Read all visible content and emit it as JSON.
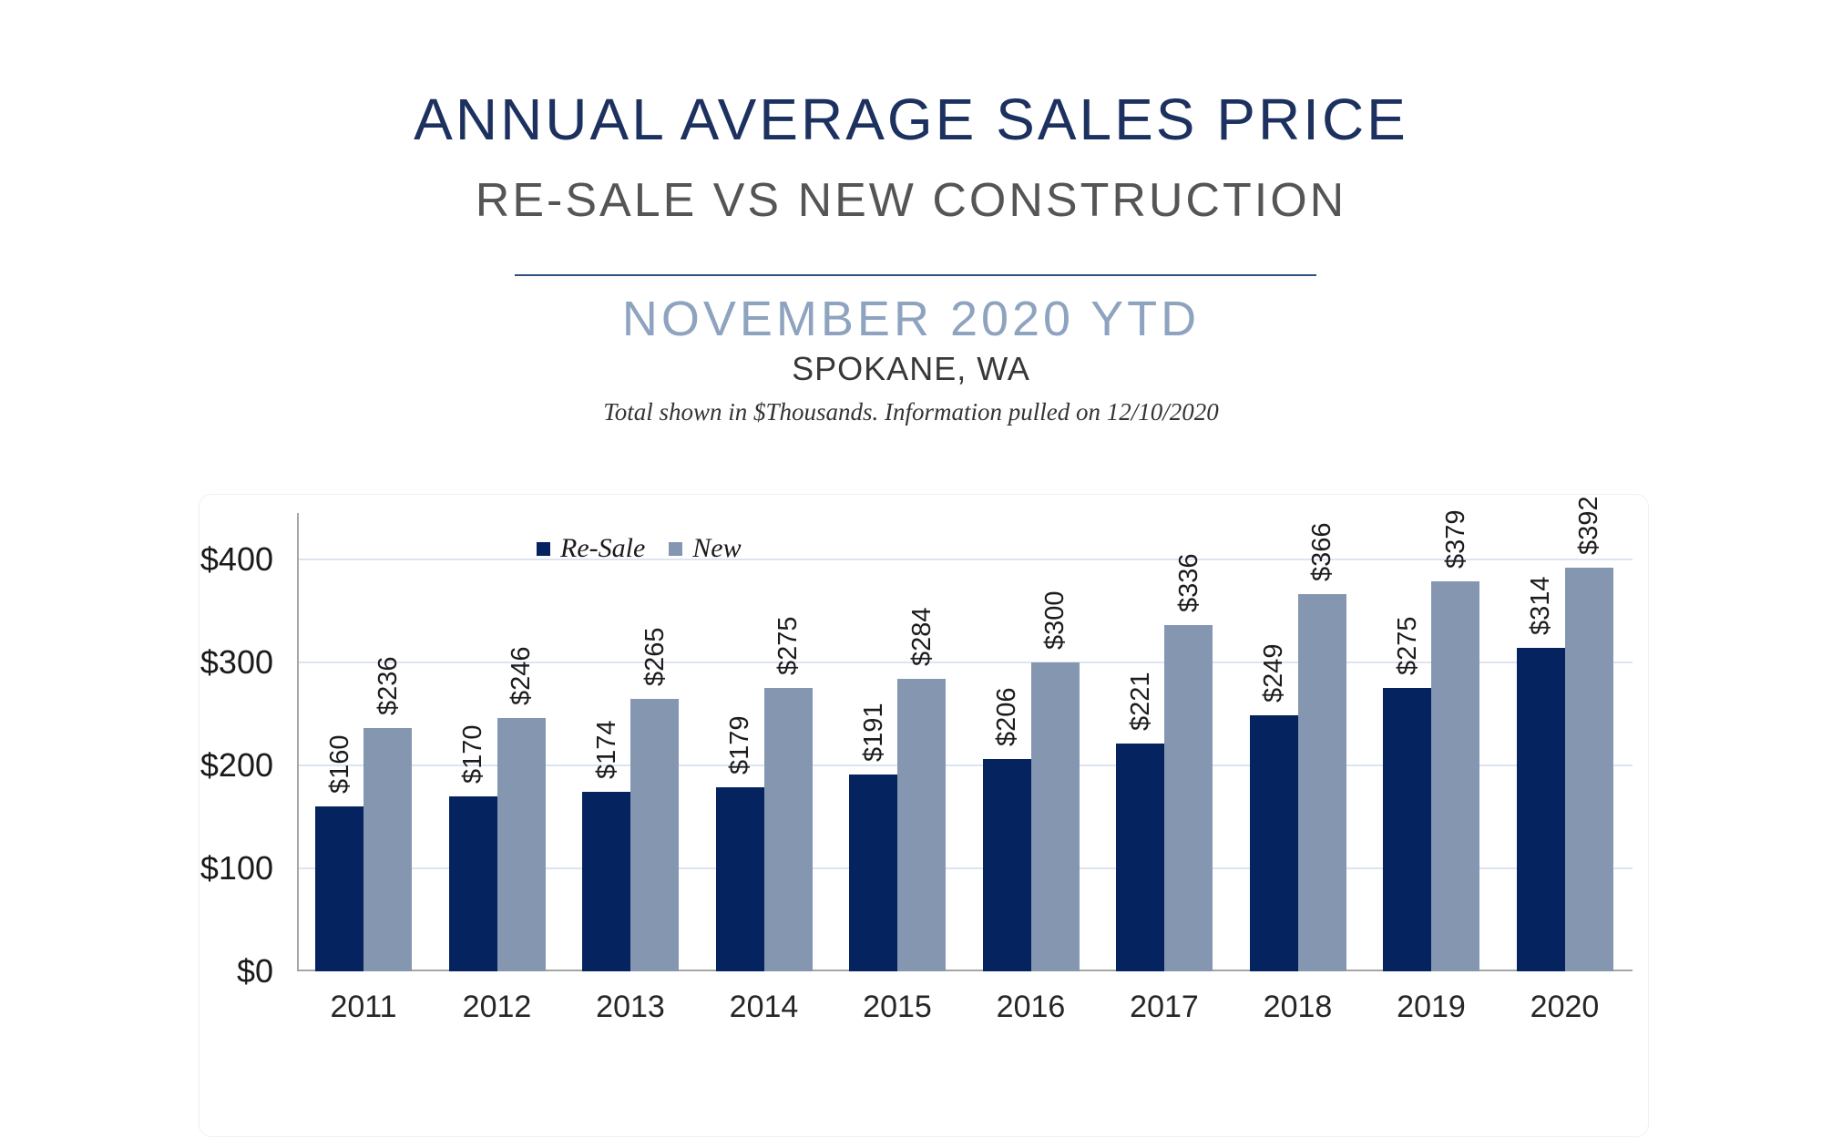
{
  "header": {
    "title": "ANNUAL AVERAGE SALES PRICE",
    "subtitle": "RE-SALE VS NEW CONSTRUCTION",
    "period": "NOVEMBER 2020 YTD",
    "location": "SPOKANE, WA",
    "footnote": "Total shown in $Thousands. Information pulled on 12/10/2020"
  },
  "colors": {
    "title": "#1d3160",
    "subtitle": "#555555",
    "divider": "#2f5182",
    "period": "#8ea3bf",
    "location": "#383838",
    "footnote": "#333333",
    "resale_bar": "#05235f",
    "new_bar": "#8496b0",
    "gridline": "#dce4f4",
    "axis": "#a6a6a6"
  },
  "chart_data": {
    "type": "bar",
    "title": "Annual Average Sales Price — Re-Sale vs New Construction, November 2020 YTD, Spokane WA",
    "units": "$Thousands",
    "value_prefix": "$",
    "categories": [
      "2011",
      "2012",
      "2013",
      "2014",
      "2015",
      "2016",
      "2017",
      "2018",
      "2019",
      "2020"
    ],
    "series": [
      {
        "name": "Re-Sale",
        "color": "#05235f",
        "values": [
          160,
          170,
          174,
          179,
          191,
          206,
          221,
          249,
          275,
          314
        ]
      },
      {
        "name": "New",
        "color": "#8496b0",
        "values": [
          236,
          246,
          265,
          275,
          284,
          300,
          336,
          366,
          379,
          392
        ]
      }
    ],
    "yticks": [
      {
        "label": "$0",
        "value": 0
      },
      {
        "label": "$100",
        "value": 100
      },
      {
        "label": "$200",
        "value": 200
      },
      {
        "label": "$300",
        "value": 300
      },
      {
        "label": "$400",
        "value": 400
      }
    ],
    "ylim": [
      0,
      445
    ],
    "grid": true,
    "legend_position": "top-left-inside",
    "bar_label_rotation": -90
  }
}
